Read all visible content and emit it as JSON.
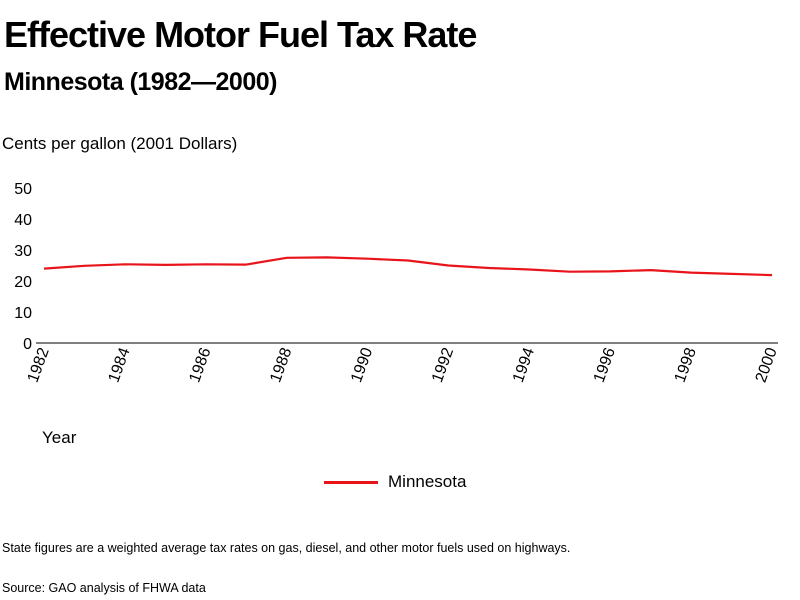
{
  "chart_data": {
    "type": "line",
    "title": "Effective Motor Fuel Tax Rate",
    "subtitle": "Minnesota (1982—2000)",
    "ylabel": "Cents per gallon (2001 Dollars)",
    "xlabel": "Year",
    "x": [
      1982,
      1983,
      1984,
      1985,
      1986,
      1987,
      1988,
      1989,
      1990,
      1991,
      1992,
      1993,
      1994,
      1995,
      1996,
      1997,
      1998,
      1999,
      2000
    ],
    "xticks": [
      "1982",
      "1984",
      "1986",
      "1988",
      "1990",
      "1992",
      "1994",
      "1996",
      "1998",
      "2000"
    ],
    "yticks": [
      "50",
      "40",
      "30",
      "20",
      "10",
      "0"
    ],
    "ylim": [
      0,
      50
    ],
    "xlim": [
      1982,
      2000
    ],
    "grid": false,
    "legend_position": "bottom-center",
    "series": [
      {
        "name": "Minnesota",
        "color": "#e8141a",
        "values": [
          24.0,
          24.9,
          25.4,
          25.2,
          25.4,
          25.3,
          27.5,
          27.6,
          27.2,
          26.6,
          25.0,
          24.2,
          23.7,
          23.0,
          23.1,
          23.5,
          22.7,
          22.3,
          21.9
        ]
      }
    ]
  },
  "footnotes": {
    "note": "State figures are a weighted average tax rates on gas, diesel, and other motor fuels used on highways.",
    "source": "Source: GAO analysis of FHWA data"
  }
}
